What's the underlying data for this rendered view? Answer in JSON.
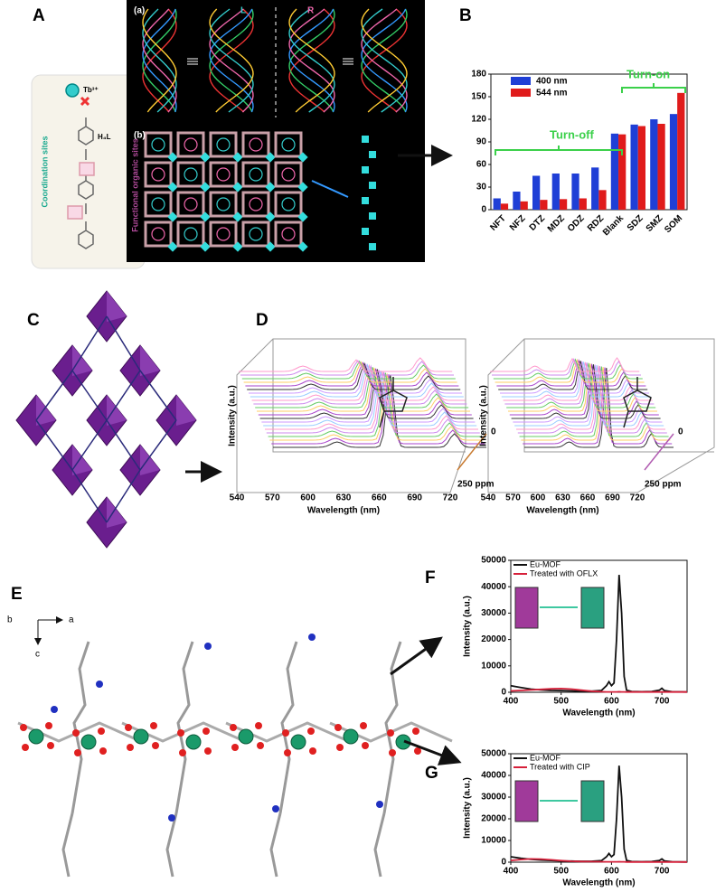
{
  "panel_labels": [
    "A",
    "B",
    "C",
    "D",
    "E",
    "F",
    "G"
  ],
  "panel_a": {
    "labels": [
      "(a)",
      "L",
      "R",
      "(b)"
    ],
    "side_texts": [
      "Coordination sites",
      "Functional organic sites"
    ],
    "ion": "Tb³⁺",
    "ligand": "H₄L"
  },
  "panel_d": {
    "y_label": "Intensity (a.u.)",
    "x_label": "Wavelength (nm)",
    "xticks": [
      540,
      570,
      600,
      630,
      660,
      690,
      720
    ],
    "z_start": "0",
    "z_end": "250 ppm"
  },
  "panel_e": {
    "axes": [
      "b",
      "a",
      "c"
    ]
  },
  "chart_data": [
    {
      "type": "bar",
      "categories": [
        "NFT",
        "NFZ",
        "DTZ",
        "MDZ",
        "ODZ",
        "RDZ",
        "Blank",
        "SDZ",
        "SMZ",
        "SOM"
      ],
      "series": [
        {
          "name": "400 nm",
          "color": "#1f3fd6",
          "values": [
            15,
            24,
            45,
            48,
            48,
            56,
            101,
            113,
            120,
            127
          ]
        },
        {
          "name": "544 nm",
          "color": "#e01b1b",
          "values": [
            8,
            11,
            13,
            14,
            15,
            26,
            100,
            111,
            114,
            155
          ]
        }
      ],
      "annotations": [
        "Turn-off",
        "Turn-on"
      ],
      "ylim": [
        0,
        180
      ],
      "yticks": [
        0,
        30,
        60,
        90,
        120,
        150,
        180
      ]
    },
    {
      "type": "line",
      "x_label": "Wavelength (nm)",
      "y_label": "Intensity (a.u.)",
      "x": [
        400,
        420,
        440,
        460,
        480,
        500,
        520,
        540,
        560,
        580,
        590,
        595,
        600,
        605,
        610,
        615,
        620,
        625,
        630,
        640,
        660,
        680,
        695,
        700,
        705,
        720,
        750
      ],
      "series": [
        {
          "name": "Eu-MOF",
          "color": "#111111",
          "values": [
            2500,
            1800,
            1200,
            900,
            700,
            600,
            500,
            400,
            400,
            700,
            2500,
            4000,
            2500,
            3500,
            20000,
            44500,
            30000,
            6000,
            800,
            300,
            200,
            300,
            800,
            1500,
            600,
            200,
            100
          ]
        },
        {
          "name": "Treated with OFLX",
          "color": "#d6203a",
          "values": [
            500,
            700,
            900,
            1100,
            1300,
            1400,
            1200,
            800,
            400,
            200,
            150,
            150,
            150,
            150,
            150,
            200,
            150,
            150,
            100,
            100,
            100,
            100,
            100,
            100,
            100,
            100,
            100
          ]
        }
      ],
      "xlim": [
        400,
        750
      ],
      "xticks": [
        400,
        500,
        600,
        700
      ],
      "ylim": [
        0,
        50000
      ],
      "yticks": [
        0,
        10000,
        20000,
        30000,
        40000,
        50000
      ]
    },
    {
      "type": "line",
      "x_label": "Wavelength (nm)",
      "y_label": "Intensity (a.u.)",
      "x": [
        400,
        420,
        440,
        460,
        480,
        500,
        520,
        540,
        560,
        580,
        590,
        595,
        600,
        605,
        610,
        615,
        620,
        625,
        630,
        640,
        660,
        680,
        695,
        700,
        705,
        720,
        750
      ],
      "series": [
        {
          "name": "Eu-MOF",
          "color": "#111111",
          "values": [
            2500,
            1800,
            1300,
            1000,
            800,
            600,
            500,
            400,
            400,
            700,
            2500,
            4000,
            2500,
            3500,
            20000,
            44500,
            30000,
            6000,
            800,
            300,
            200,
            300,
            800,
            1500,
            600,
            200,
            100
          ]
        },
        {
          "name": "Treated with CIP",
          "color": "#d6203a",
          "values": [
            800,
            1200,
            1500,
            1400,
            1100,
            700,
            400,
            300,
            250,
            200,
            150,
            150,
            150,
            150,
            150,
            200,
            150,
            150,
            100,
            100,
            100,
            100,
            100,
            100,
            100,
            100,
            100
          ]
        }
      ],
      "xlim": [
        400,
        750
      ],
      "xticks": [
        400,
        500,
        600,
        700
      ],
      "ylim": [
        0,
        50000
      ],
      "yticks": [
        0,
        10000,
        20000,
        30000,
        40000,
        50000
      ]
    }
  ]
}
